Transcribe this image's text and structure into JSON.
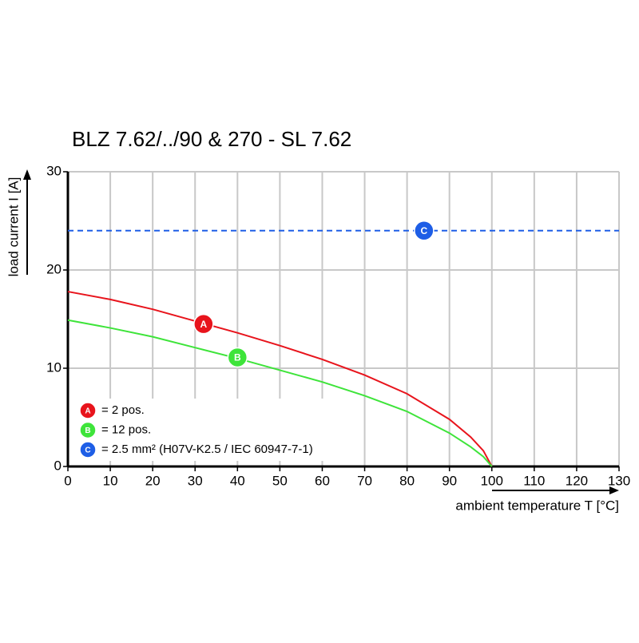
{
  "chart_data": {
    "type": "line",
    "title": "BLZ 7.62/../90 & 270 - SL 7.62",
    "x_label": "ambient temperature T [°C]",
    "y_label": "load current I [A]",
    "xlim": [
      0,
      130
    ],
    "xticks": [
      0,
      10,
      20,
      30,
      40,
      50,
      60,
      70,
      80,
      90,
      100,
      110,
      120,
      130
    ],
    "ylim": [
      0,
      30
    ],
    "yticks": [
      0,
      10,
      20,
      30
    ],
    "grid": true,
    "series": [
      {
        "name": "= 2 pos.",
        "marker": "A",
        "color": "#e8141c",
        "style": "solid",
        "x": [
          0,
          10,
          20,
          30,
          40,
          50,
          60,
          70,
          80,
          90,
          95,
          98,
          100
        ],
        "values": [
          17.8,
          17.0,
          16.0,
          14.8,
          13.6,
          12.3,
          10.9,
          9.3,
          7.4,
          4.8,
          3.0,
          1.6,
          0
        ],
        "marker_x": 32,
        "marker_y": 14.5
      },
      {
        "name": "= 12 pos.",
        "marker": "B",
        "color": "#3ee43a",
        "style": "solid",
        "x": [
          0,
          10,
          20,
          30,
          40,
          50,
          60,
          70,
          80,
          90,
          95,
          98,
          100
        ],
        "values": [
          14.9,
          14.1,
          13.2,
          12.1,
          11.0,
          9.8,
          8.6,
          7.2,
          5.6,
          3.4,
          2.0,
          1.0,
          0
        ],
        "marker_x": 40,
        "marker_y": 11.1
      },
      {
        "name": "= 2.5 mm² (H07V-K2.5 / IEC 60947-7-1)",
        "marker": "C",
        "color": "#1e5ee6",
        "style": "dashed",
        "x": [
          0,
          130
        ],
        "values": [
          24,
          24
        ],
        "marker_x": 84,
        "marker_y": 24
      }
    ]
  }
}
